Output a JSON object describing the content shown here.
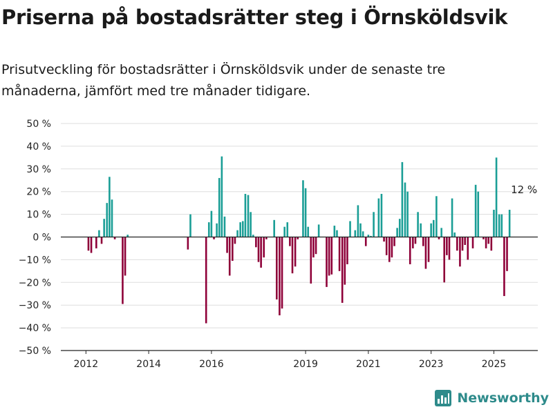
{
  "title": "Priserna på bostadsrätter steg i Örnsköldsvik",
  "subtitle": "Prisutveckling för bostadsrätter i Örnsköldsvik under de senaste tre månaderna, jämfört med tre månader tidigare.",
  "brand": "Newsworthy",
  "colors": {
    "positive": "#1a9e96",
    "negative": "#8e0038",
    "axis": "#222222",
    "grid": "#dddddd"
  },
  "chart_data": {
    "type": "bar",
    "ylim": [
      -50,
      50
    ],
    "y_ticks": [
      50,
      40,
      30,
      20,
      10,
      0,
      -10,
      -20,
      -30,
      -40,
      -50
    ],
    "y_tick_labels": [
      "50 %",
      "40 %",
      "30 %",
      "20 %",
      "10 %",
      "0 %",
      "−10 %",
      "−20 %",
      "−30 %",
      "−40 %",
      "−50 %"
    ],
    "x_ticks": [
      2012,
      2014,
      2016,
      2019,
      2021,
      2023,
      2025
    ],
    "x_tick_labels": [
      "2012",
      "2014",
      "2016",
      "2019",
      "2021",
      "2023",
      "2025"
    ],
    "annotation": "12 %",
    "grid": true,
    "x": [
      2012.08,
      2012.17,
      2012.33,
      2012.42,
      2012.5,
      2012.58,
      2012.67,
      2012.75,
      2012.83,
      2012.92,
      2013.17,
      2013.25,
      2013.33,
      2015.25,
      2015.33,
      2015.83,
      2015.92,
      2016.0,
      2016.08,
      2016.17,
      2016.25,
      2016.33,
      2016.42,
      2016.5,
      2016.58,
      2016.67,
      2016.75,
      2016.83,
      2016.92,
      2017.0,
      2017.08,
      2017.17,
      2017.25,
      2017.33,
      2017.42,
      2017.5,
      2017.58,
      2017.67,
      2017.75,
      2018.0,
      2018.08,
      2018.17,
      2018.25,
      2018.33,
      2018.42,
      2018.5,
      2018.58,
      2018.67,
      2018.75,
      2018.92,
      2019.0,
      2019.08,
      2019.17,
      2019.25,
      2019.33,
      2019.42,
      2019.67,
      2019.75,
      2019.83,
      2019.92,
      2020.0,
      2020.08,
      2020.17,
      2020.25,
      2020.33,
      2020.42,
      2020.58,
      2020.67,
      2020.75,
      2020.83,
      2020.92,
      2021.0,
      2021.08,
      2021.17,
      2021.33,
      2021.42,
      2021.5,
      2021.58,
      2021.67,
      2021.75,
      2021.83,
      2021.92,
      2022.0,
      2022.08,
      2022.17,
      2022.25,
      2022.33,
      2022.42,
      2022.5,
      2022.58,
      2022.67,
      2022.75,
      2022.83,
      2022.92,
      2023.0,
      2023.08,
      2023.17,
      2023.25,
      2023.33,
      2023.42,
      2023.5,
      2023.58,
      2023.67,
      2023.75,
      2023.83,
      2023.92,
      2024.0,
      2024.08,
      2024.17,
      2024.33,
      2024.42,
      2024.5,
      2024.67,
      2024.75,
      2024.83,
      2024.92,
      2025.0,
      2025.08,
      2025.17,
      2025.25,
      2025.33,
      2025.42
    ],
    "values": [
      -6,
      -7,
      -5,
      3,
      -3,
      8,
      15,
      26.5,
      16.5,
      -1,
      -29.5,
      -17,
      1,
      -5.5,
      10,
      -38,
      6.5,
      11.5,
      -1,
      6,
      26,
      35.5,
      9,
      -7,
      -17,
      -10.5,
      -3,
      3,
      6.5,
      7,
      19,
      18.5,
      11,
      1,
      -4.5,
      -11,
      -13.5,
      -9,
      -1,
      7.5,
      -27.5,
      -34.5,
      -31.5,
      4.5,
      6.5,
      -4,
      -16,
      -13,
      -1,
      25,
      21.5,
      4.5,
      -20.5,
      -9,
      -7.5,
      5.5,
      -22,
      -17,
      -16.5,
      5,
      3,
      -15,
      -29,
      -21,
      -12,
      7,
      3,
      14,
      6,
      2.5,
      -4,
      1,
      0.5,
      11,
      17,
      19,
      -2,
      -8,
      -11,
      -9,
      -4,
      4,
      8,
      33,
      24,
      20,
      -12,
      -5,
      -3,
      11,
      6,
      -4,
      -14,
      -11,
      6,
      7.5,
      18,
      -1,
      4,
      -20,
      -8,
      -10,
      17,
      2,
      -6,
      -13,
      -6,
      -3.5,
      -10,
      -5,
      23,
      20,
      -1,
      -5,
      -3,
      -6,
      12,
      35,
      10,
      10,
      -26,
      -15
    ],
    "latest": {
      "x": 2025.5,
      "value": 12
    }
  }
}
